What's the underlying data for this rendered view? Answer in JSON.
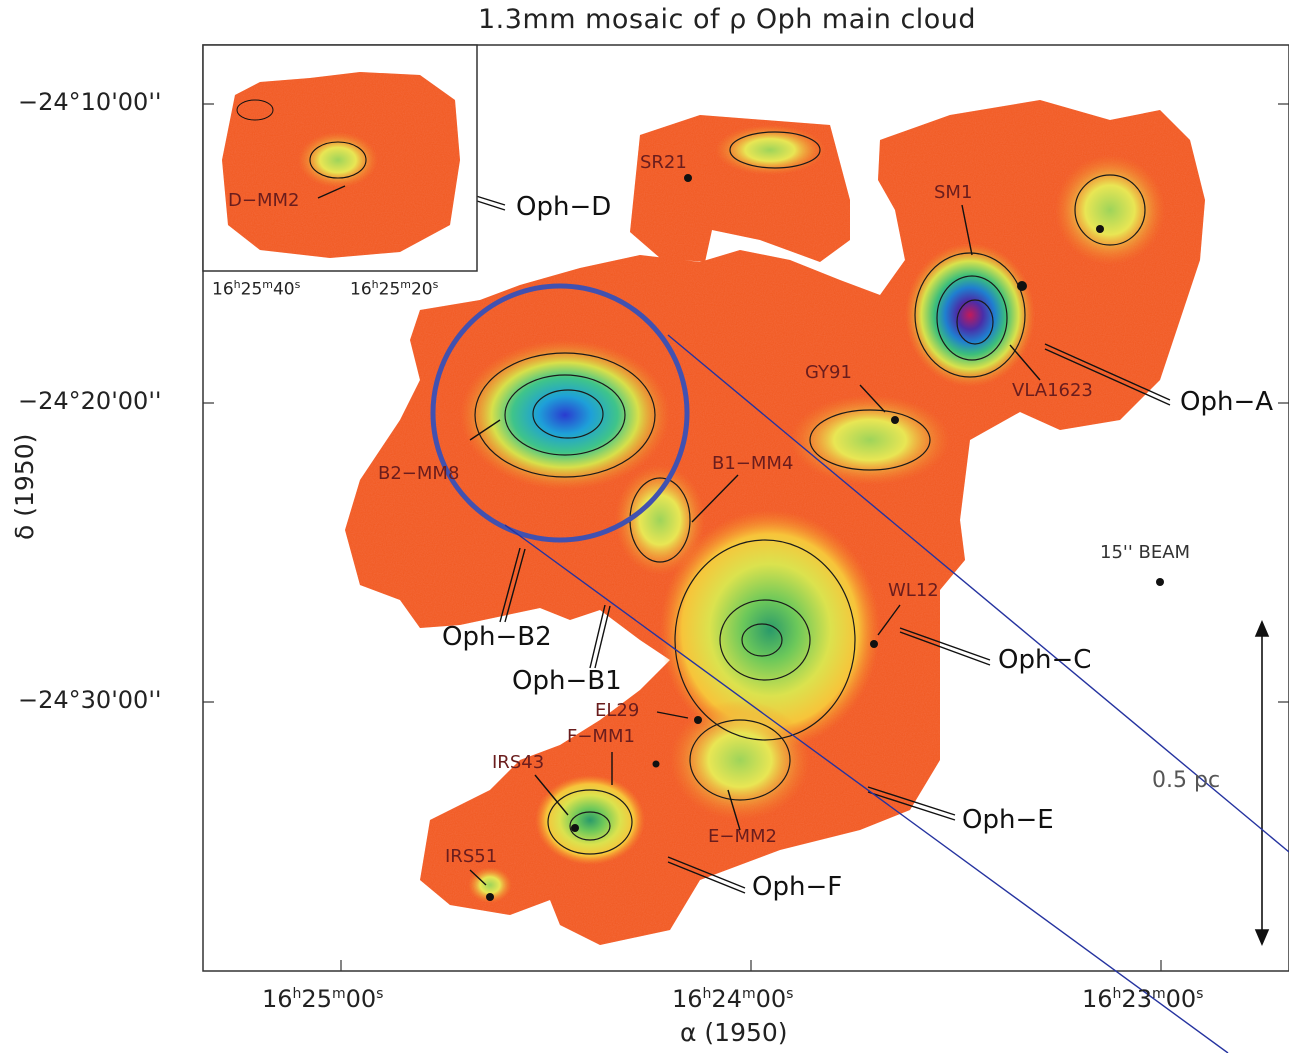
{
  "title": "1.3mm mosaic of ρ Oph main cloud",
  "axes": {
    "xlabel": "α (1950)",
    "ylabel": "δ (1950)",
    "x_ticks": [
      {
        "h": "16",
        "m": "25",
        "s": "00"
      },
      {
        "h": "16",
        "m": "24",
        "s": "00"
      },
      {
        "h": "16",
        "m": "23",
        "s": "00"
      }
    ],
    "y_ticks": [
      "−24°10'00''",
      "−24°20'00''",
      "−24°30'00''"
    ],
    "inset_x_ticks": [
      {
        "h": "16",
        "m": "25",
        "s": "40"
      },
      {
        "h": "16",
        "m": "25",
        "s": "20"
      }
    ]
  },
  "regions": [
    "Oph−D",
    "Oph−A",
    "Oph−B2",
    "Oph−B1",
    "Oph−C",
    "Oph−E",
    "Oph−F"
  ],
  "sources": [
    "D−MM2",
    "SR21",
    "SM1",
    "VLA1623",
    "GY91",
    "B2−MM8",
    "B1−MM4",
    "WL12",
    "EL29",
    "F−MM1",
    "IRS43",
    "E−MM2",
    "IRS51"
  ],
  "beam_label": "15'' BEAM",
  "scale_label": "0.5 pc",
  "colors": {
    "background_map": "#f0581e",
    "highlight_circle": "#4151b0",
    "zoom_lines": "#2533a0"
  }
}
